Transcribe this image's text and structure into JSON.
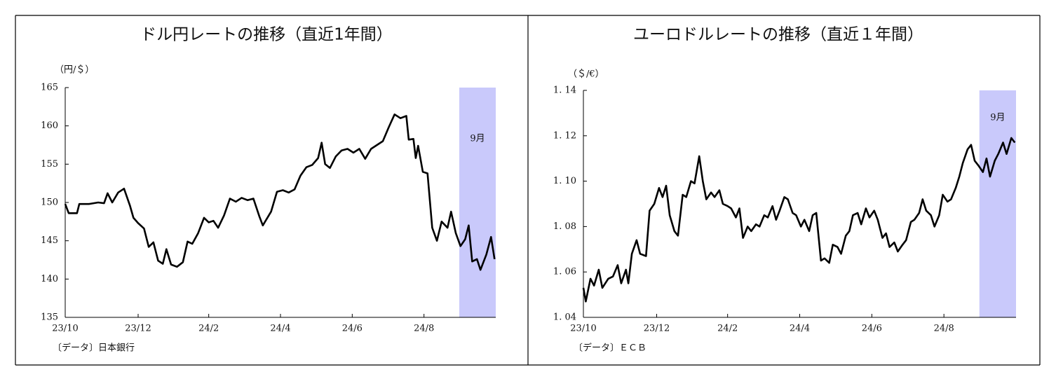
{
  "chart_data": [
    {
      "type": "line",
      "title": "ドル円レートの推移（直近1年間）",
      "y_label": "（円/＄）",
      "source": "〔データ〕日本銀行",
      "annotation": "9月",
      "highlight": [
        335,
        366
      ],
      "highlight_color": "#c9c9fb",
      "color": "#000000",
      "xlim": [
        0,
        366
      ],
      "xticks": [
        {
          "value": 0,
          "label": "23/10"
        },
        {
          "value": 62,
          "label": "23/12"
        },
        {
          "value": 122,
          "label": "24/2"
        },
        {
          "value": 183,
          "label": "24/4"
        },
        {
          "value": 244,
          "label": "24/6"
        },
        {
          "value": 305,
          "label": "24/8"
        }
      ],
      "ylim": [
        135,
        165
      ],
      "yticks": [
        135,
        140,
        145,
        150,
        155,
        160,
        165
      ],
      "x": [
        0,
        3,
        10,
        12,
        20,
        28,
        33,
        36,
        40,
        45,
        50,
        55,
        58,
        62,
        67,
        71,
        75,
        79,
        83,
        86,
        90,
        95,
        100,
        104,
        108,
        113,
        118,
        122,
        126,
        130,
        135,
        140,
        145,
        150,
        155,
        160,
        165,
        168,
        175,
        180,
        185,
        190,
        195,
        200,
        205,
        210,
        215,
        218,
        221,
        225,
        230,
        235,
        240,
        245,
        250,
        255,
        260,
        265,
        270,
        275,
        280,
        285,
        290,
        292,
        296,
        298,
        300,
        304,
        308,
        312,
        316,
        320,
        325,
        328,
        332,
        336,
        340,
        343,
        346,
        350,
        353,
        358,
        362,
        365
      ],
      "values": [
        149.8,
        148.6,
        148.6,
        149.8,
        149.8,
        150.0,
        149.9,
        151.2,
        150.0,
        151.3,
        151.8,
        149.6,
        148.0,
        147.3,
        146.6,
        144.2,
        144.8,
        142.4,
        142.0,
        143.9,
        141.9,
        141.6,
        142.2,
        144.9,
        144.6,
        146.0,
        148.0,
        147.4,
        147.6,
        146.7,
        148.3,
        150.5,
        150.1,
        150.6,
        150.3,
        150.5,
        148.2,
        147.0,
        148.8,
        151.4,
        151.6,
        151.3,
        151.7,
        153.5,
        154.6,
        154.9,
        155.8,
        157.8,
        155.0,
        154.5,
        156.0,
        156.8,
        157.0,
        156.5,
        157.0,
        155.7,
        157.0,
        157.5,
        158.0,
        159.8,
        161.5,
        161.0,
        161.3,
        158.2,
        158.3,
        155.8,
        157.4,
        154.0,
        153.8,
        146.7,
        145.0,
        147.5,
        146.7,
        148.8,
        146.0,
        144.3,
        145.2,
        147.0,
        142.3,
        142.6,
        141.2,
        143.2,
        145.5,
        142.6
      ]
    },
    {
      "type": "line",
      "title": "ユーロドルレートの推移（直近１年間）",
      "y_label": "（＄/€）",
      "source": "〔データ〕ＥＣＢ",
      "annotation": "9月",
      "highlight": [
        335,
        366
      ],
      "highlight_color": "#c9c9fb",
      "color": "#000000",
      "xlim": [
        0,
        366
      ],
      "xticks": [
        {
          "value": 0,
          "label": "23/10"
        },
        {
          "value": 62,
          "label": "23/12"
        },
        {
          "value": 122,
          "label": "24/2"
        },
        {
          "value": 183,
          "label": "24/4"
        },
        {
          "value": 244,
          "label": "24/6"
        },
        {
          "value": 305,
          "label": "24/8"
        }
      ],
      "ylim": [
        1.04,
        1.14
      ],
      "yticks": [
        {
          "value": 1.04,
          "label": "1. 04"
        },
        {
          "value": 1.06,
          "label": "1. 06"
        },
        {
          "value": 1.08,
          "label": "1. 08"
        },
        {
          "value": 1.1,
          "label": "1. 10"
        },
        {
          "value": 1.12,
          "label": "1. 12"
        },
        {
          "value": 1.14,
          "label": "1. 14"
        }
      ],
      "x": [
        0,
        2,
        6,
        9,
        13,
        16,
        21,
        25,
        29,
        32,
        36,
        38,
        41,
        45,
        48,
        53,
        56,
        60,
        64,
        67,
        70,
        73,
        77,
        80,
        84,
        87,
        91,
        94,
        98,
        101,
        104,
        108,
        111,
        115,
        118,
        122,
        125,
        129,
        132,
        135,
        139,
        142,
        146,
        149,
        153,
        156,
        160,
        163,
        166,
        170,
        173,
        177,
        180,
        184,
        187,
        191,
        194,
        197,
        201,
        204,
        208,
        211,
        215,
        218,
        222,
        225,
        228,
        232,
        235,
        239,
        242,
        246,
        249,
        253,
        256,
        259,
        263,
        266,
        270,
        273,
        277,
        280,
        284,
        287,
        290,
        294,
        297,
        301,
        304,
        308,
        311,
        315,
        318,
        321,
        325,
        328,
        331,
        334,
        338,
        341,
        344,
        348,
        351,
        355,
        358,
        362,
        365
      ],
      "values": [
        1.053,
        1.047,
        1.057,
        1.054,
        1.061,
        1.053,
        1.057,
        1.058,
        1.063,
        1.055,
        1.061,
        1.055,
        1.068,
        1.074,
        1.068,
        1.067,
        1.087,
        1.09,
        1.097,
        1.093,
        1.098,
        1.085,
        1.078,
        1.076,
        1.094,
        1.093,
        1.1,
        1.099,
        1.111,
        1.1,
        1.092,
        1.095,
        1.093,
        1.096,
        1.09,
        1.089,
        1.088,
        1.084,
        1.088,
        1.075,
        1.08,
        1.078,
        1.081,
        1.08,
        1.085,
        1.084,
        1.089,
        1.083,
        1.087,
        1.093,
        1.092,
        1.086,
        1.085,
        1.08,
        1.083,
        1.078,
        1.085,
        1.086,
        1.065,
        1.066,
        1.064,
        1.072,
        1.071,
        1.068,
        1.076,
        1.078,
        1.085,
        1.086,
        1.081,
        1.088,
        1.084,
        1.087,
        1.083,
        1.075,
        1.077,
        1.071,
        1.073,
        1.069,
        1.072,
        1.074,
        1.082,
        1.083,
        1.086,
        1.092,
        1.087,
        1.085,
        1.08,
        1.085,
        1.094,
        1.091,
        1.092,
        1.097,
        1.102,
        1.108,
        1.114,
        1.116,
        1.109,
        1.107,
        1.104,
        1.11,
        1.102,
        1.109,
        1.112,
        1.117,
        1.112,
        1.119,
        1.117
      ]
    }
  ]
}
